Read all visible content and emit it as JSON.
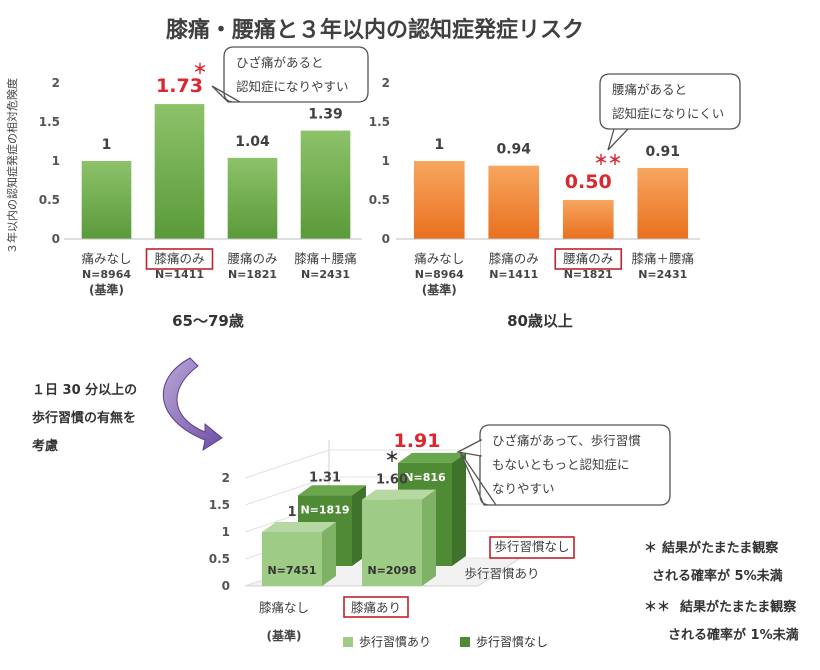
{
  "title": "膝痛・腰痛と３年以内の認知症発症リスク",
  "ylabel": "３年以内の認知症発症の相対危険度",
  "colors": {
    "green_top": "#8dc26a",
    "green_bottom": "#5a9a3a",
    "orange_top": "#f59a52",
    "orange_bottom": "#e9701e",
    "light3d": "#9ecb86",
    "dark3d": "#4f8a34",
    "red": "#d9282f",
    "highlight_box": "#c0232c"
  },
  "chart_data": [
    {
      "type": "bar",
      "title": "65〜79歳",
      "ylim": [
        0,
        2
      ],
      "yticks": [
        "0",
        "0.5",
        "1",
        "1.5",
        "2"
      ],
      "categories": [
        "痛みなし",
        "膝痛のみ",
        "腰痛のみ",
        "膝痛＋腰痛"
      ],
      "n_labels": [
        "N=8964",
        "N=1411",
        "N=1821",
        "N=2431"
      ],
      "baseline_note": "(基準)",
      "values": [
        1,
        1.73,
        1.04,
        1.39
      ],
      "value_labels": [
        "1",
        "1.73",
        "1.04",
        "1.39"
      ],
      "highlight_index": 1,
      "significance": "＊",
      "callout_lines": [
        "ひざ痛があると",
        "認知症になりやすい"
      ]
    },
    {
      "type": "bar",
      "title": "80歳以上",
      "ylim": [
        0,
        2
      ],
      "yticks": [
        "0",
        "0.5",
        "1",
        "1.5",
        "2"
      ],
      "categories": [
        "痛みなし",
        "膝痛のみ",
        "腰痛のみ",
        "膝痛＋腰痛"
      ],
      "n_labels": [
        "N=8964",
        "N=1411",
        "N=1821",
        "N=2431"
      ],
      "baseline_note": "(基準)",
      "values": [
        1,
        0.94,
        0.5,
        0.91
      ],
      "value_labels": [
        "1",
        "0.94",
        "0.50",
        "0.91"
      ],
      "highlight_index": 2,
      "significance": "＊＊",
      "callout_lines": [
        "腰痛があると",
        "認知症になりにくい"
      ]
    },
    {
      "type": "bar",
      "ylim": [
        0,
        2
      ],
      "yticks": [
        "0",
        "0.5",
        "1",
        "1.5",
        "2"
      ],
      "categories": [
        "膝痛なし",
        "膝痛あり"
      ],
      "baseline_note": "(基準)",
      "highlight_category_index": 1,
      "depth_labels": [
        "歩行習慣なし",
        "歩行習慣あり"
      ],
      "series": [
        {
          "name": "歩行習慣あり",
          "values": [
            1,
            1.6
          ],
          "value_labels": [
            "1",
            "1.60"
          ],
          "n_labels": [
            "N=7451",
            "N=2098"
          ]
        },
        {
          "name": "歩行習慣なし",
          "values": [
            1.31,
            1.91
          ],
          "value_labels": [
            "1.31",
            "1.91"
          ],
          "n_labels": [
            "N=1819",
            "N=816"
          ]
        }
      ],
      "significance": "＊",
      "callout_lines": [
        "ひざ痛があって、歩行習慣",
        "もないともっと認知症に",
        "なりやすい"
      ],
      "legend": [
        "歩行習慣あり",
        "歩行習慣なし"
      ]
    }
  ],
  "walking_note_lines": [
    "１日 30 分以上の",
    "歩行習慣の有無を",
    "考慮"
  ],
  "footnotes": [
    {
      "mark": "＊",
      "lines": [
        "結果がたまたま観察",
        "される確率が 5%未満"
      ]
    },
    {
      "mark": "＊＊",
      "lines": [
        "結果がたまたま観察",
        "される確率が 1%未満"
      ]
    }
  ]
}
